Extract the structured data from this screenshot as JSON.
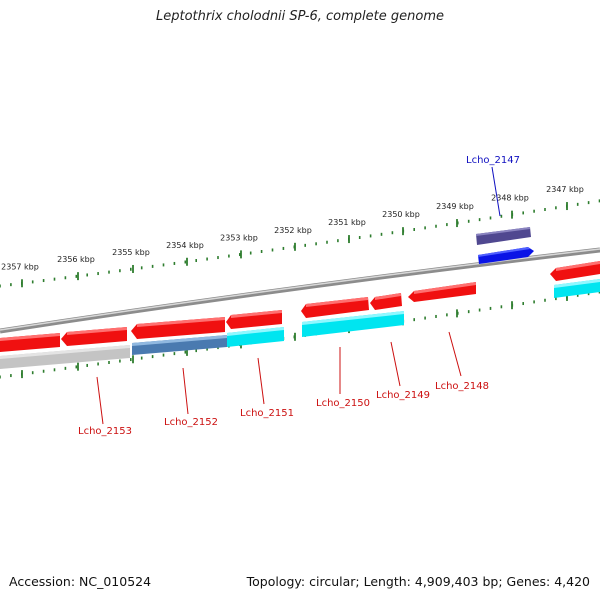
{
  "title": "Leptothrix cholodnii SP-6, complete genome",
  "footer": {
    "accession": "Accession: NC_010524",
    "topology": "Topology: circular; Length: 4,909,403 bp; Genes: 4,420"
  },
  "colors": {
    "backbone": "#8c8c8c",
    "tick": "#2e7d2e",
    "gene_red": "#f01010",
    "gene_cyan": "#00e5f0",
    "gene_blue": "#0a14e6",
    "gene_purple": "#504890",
    "gene_steel": "#4a7ab0",
    "gene_grey": "#c4c4c4",
    "label_red": "#cc1010",
    "label_blue": "#1010c0"
  },
  "scale": {
    "labels": [
      "2347 kbp",
      "2348 kbp",
      "2349 kbp",
      "2350 kbp",
      "2351 kbp",
      "2352 kbp",
      "2353 kbp",
      "2354 kbp",
      "2355 kbp",
      "2356 kbp",
      "2357 kbp"
    ]
  },
  "gene_labels": [
    {
      "name": "Lcho_2147",
      "color": "blue"
    },
    {
      "name": "Lcho_2148",
      "color": "red"
    },
    {
      "name": "Lcho_2149",
      "color": "red"
    },
    {
      "name": "Lcho_2150",
      "color": "red"
    },
    {
      "name": "Lcho_2151",
      "color": "red"
    },
    {
      "name": "Lcho_2152",
      "color": "red"
    },
    {
      "name": "Lcho_2153",
      "color": "red"
    }
  ]
}
